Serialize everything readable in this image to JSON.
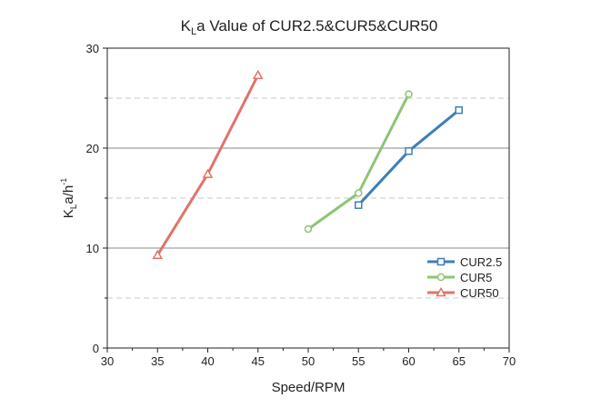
{
  "chart_data": {
    "type": "line",
    "title": {
      "main": "K",
      "sub": "L",
      "rest": "a Value of CUR2.5&CUR5&CUR50"
    },
    "xlabel": "Speed/RPM",
    "ylabel": {
      "main": "K",
      "sub": "L",
      "rest": "a/h",
      "sup": "-1"
    },
    "xlim": [
      30,
      70
    ],
    "ylim": [
      0,
      30
    ],
    "xticks": [
      30,
      35,
      40,
      45,
      50,
      55,
      60,
      65,
      70
    ],
    "yticks": [
      0,
      10,
      20,
      30
    ],
    "grid": {
      "major_y": [
        10,
        20
      ],
      "minor_y_dashed": [
        5,
        15,
        25
      ],
      "major_color": "#8a8a8a",
      "minor_color": "#c8c8c8"
    },
    "legend_position": "bottom-right",
    "series": [
      {
        "name": "CUR2.5",
        "marker": "square",
        "color": "#3d7fb8",
        "x": [
          55,
          60,
          65
        ],
        "y": [
          14.3,
          19.7,
          23.8
        ]
      },
      {
        "name": "CUR5",
        "marker": "circle",
        "color": "#8cc574",
        "x": [
          50,
          55,
          60
        ],
        "y": [
          11.9,
          15.5,
          25.4
        ]
      },
      {
        "name": "CUR50",
        "marker": "triangle",
        "color": "#e0736a",
        "x": [
          35,
          40,
          45
        ],
        "y": [
          9.3,
          17.4,
          27.3
        ]
      }
    ]
  }
}
